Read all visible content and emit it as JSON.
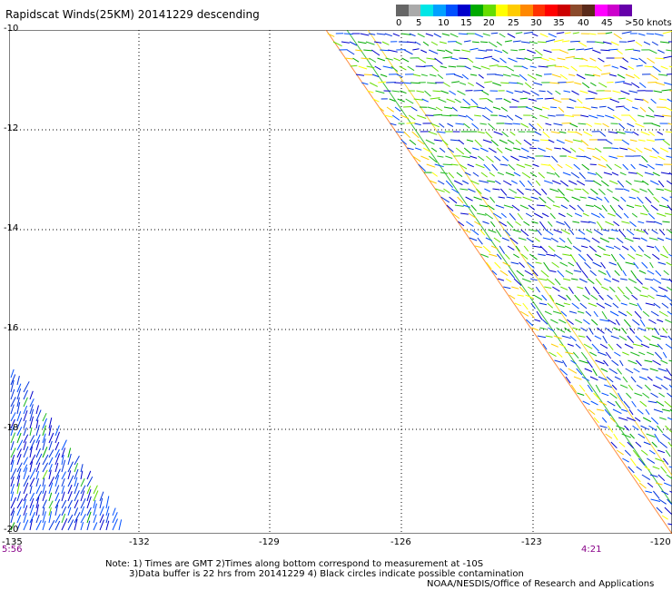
{
  "title": "Rapidscat Winds(25KM) 20141229 descending",
  "legend": {
    "colors": [
      "#666666",
      "#aaaaaa",
      "#00e6e6",
      "#00a0ff",
      "#0050ff",
      "#0000cc",
      "#00aa00",
      "#66dd00",
      "#ffff00",
      "#ffcc00",
      "#ff8800",
      "#ff3300",
      "#ff0000",
      "#cc0000",
      "#8b4a2b",
      "#5a2a1a",
      "#ff00ff",
      "#cc00cc",
      "#6600aa"
    ],
    "labels": [
      "0",
      "5",
      "10",
      "15",
      "20",
      "25",
      "30",
      "35",
      "40",
      "45",
      ">50 knots"
    ]
  },
  "axes": {
    "y_labels": [
      "-10",
      "-12",
      "-14",
      "-16",
      "-18",
      "-20"
    ],
    "x_labels": [
      "-135",
      "-132",
      "-129",
      "-126",
      "-123",
      "-120"
    ]
  },
  "times": {
    "left": "5:56",
    "right": "4:21"
  },
  "notes": {
    "line1": "Note: 1) Times are GMT 2)Times along bottom correspond to measurement at -10S",
    "line2": "3)Data buffer is 22 hrs from 20141229 4) Black circles indicate possible contamination",
    "line3": "NOAA/NESDIS/Office of Research and Applications"
  }
}
